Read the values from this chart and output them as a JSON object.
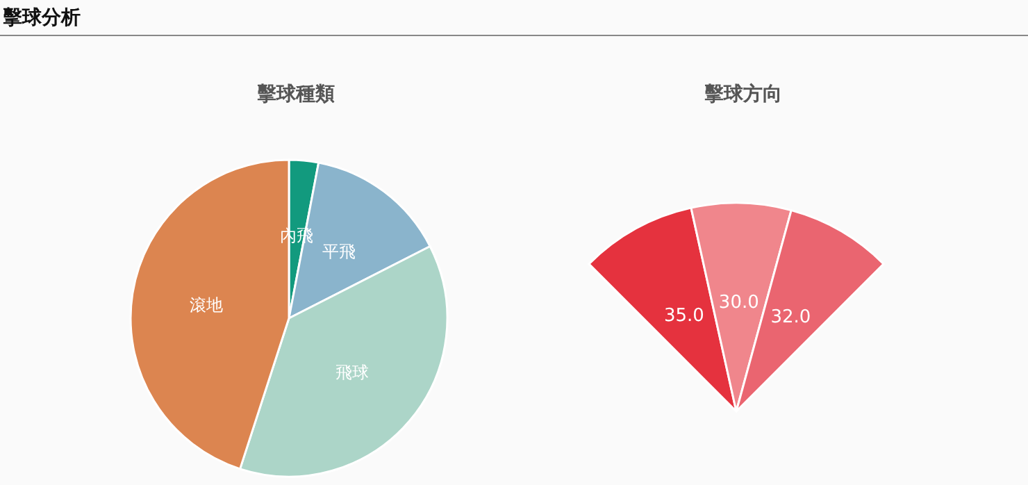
{
  "chart_data": [
    {
      "type": "pie",
      "title": "擊球種類",
      "annotations": [
        "擊球分析"
      ],
      "categories": [
        "內飛",
        "平飛",
        "飛球",
        "滾地"
      ],
      "values": [
        3,
        14.5,
        37.5,
        45
      ],
      "colors": [
        "#129a7e",
        "#8ab4cc",
        "#acd5c8",
        "#dc8550"
      ],
      "legend": false
    },
    {
      "type": "other",
      "title": "擊球方向",
      "categories": [
        null,
        null,
        null
      ],
      "values": [
        35,
        30,
        32
      ],
      "value_labels": [
        "35.0",
        "30.0",
        "32.0"
      ],
      "colors": [
        "#e5323e",
        "#f0868c",
        "#ea6570"
      ],
      "legend": false
    }
  ]
}
